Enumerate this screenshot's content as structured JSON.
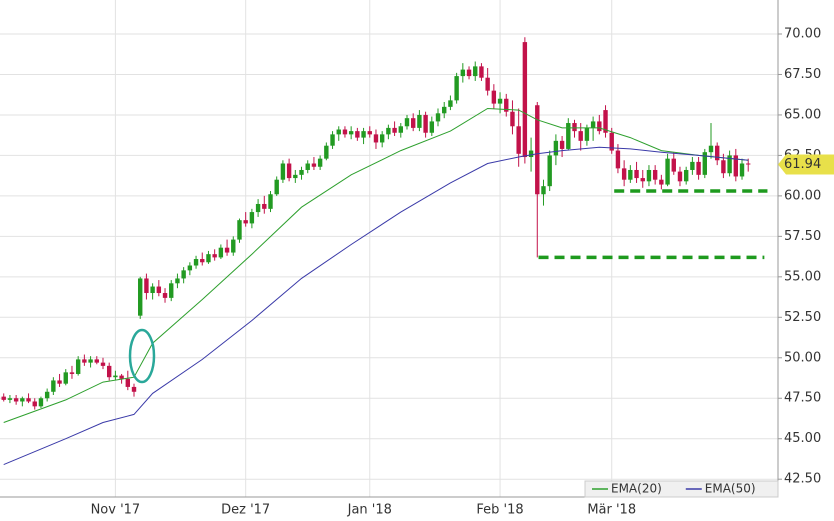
{
  "chart_data": {
    "type": "candlestick",
    "xlim": [
      -0.6,
      124.8
    ],
    "ylim": [
      41.4,
      72.1
    ],
    "xticks": [
      {
        "value": 18,
        "label": "Nov '17"
      },
      {
        "value": 39,
        "label": "Dez '17"
      },
      {
        "value": 59,
        "label": "Jan '18"
      },
      {
        "value": 80,
        "label": "Feb '18"
      },
      {
        "value": 98,
        "label": "Mär '18"
      }
    ],
    "yticks": [
      {
        "value": 42.5,
        "label": "42.50"
      },
      {
        "value": 45,
        "label": "45.00"
      },
      {
        "value": 47.5,
        "label": "47.50"
      },
      {
        "value": 50,
        "label": "50.00"
      },
      {
        "value": 52.5,
        "label": "52.50"
      },
      {
        "value": 55,
        "label": "55.00"
      },
      {
        "value": 57.5,
        "label": "57.50"
      },
      {
        "value": 60,
        "label": "60.00"
      },
      {
        "value": 62.5,
        "label": "62.50"
      },
      {
        "value": 65,
        "label": "65.00"
      },
      {
        "value": 67.5,
        "label": "67.50"
      },
      {
        "value": 70,
        "label": "70.00"
      }
    ],
    "grid": true,
    "up_color": "#229a22",
    "down_color": "#c2124a",
    "last_price": 61.94,
    "ohlc": [
      [
        47.6,
        47.8,
        47.3,
        47.4
      ],
      [
        47.4,
        47.7,
        47.2,
        47.5
      ],
      [
        47.5,
        47.7,
        47.1,
        47.3
      ],
      [
        47.3,
        47.6,
        47.0,
        47.5
      ],
      [
        47.5,
        47.8,
        47.2,
        47.3
      ],
      [
        47.3,
        47.5,
        46.8,
        47.0
      ],
      [
        47.0,
        47.6,
        46.9,
        47.5
      ],
      [
        47.5,
        48.1,
        47.3,
        47.9
      ],
      [
        47.9,
        48.8,
        47.7,
        48.6
      ],
      [
        48.6,
        49.0,
        48.2,
        48.4
      ],
      [
        48.4,
        49.3,
        48.3,
        49.1
      ],
      [
        49.1,
        49.5,
        48.7,
        49.0
      ],
      [
        49.0,
        50.1,
        48.9,
        49.9
      ],
      [
        49.9,
        50.2,
        49.5,
        49.7
      ],
      [
        49.7,
        50.1,
        49.4,
        49.9
      ],
      [
        49.9,
        50.1,
        49.6,
        49.7
      ],
      [
        49.7,
        50.0,
        49.3,
        49.5
      ],
      [
        49.5,
        49.7,
        48.6,
        48.8
      ],
      [
        48.8,
        49.2,
        48.6,
        48.9
      ],
      [
        48.9,
        49.0,
        48.4,
        48.7
      ],
      [
        48.7,
        49.2,
        48.0,
        48.2
      ],
      [
        48.2,
        48.4,
        47.6,
        47.9
      ],
      [
        52.6,
        55.0,
        52.4,
        54.9
      ],
      [
        54.9,
        55.2,
        53.6,
        54.0
      ],
      [
        54.0,
        54.6,
        53.6,
        54.4
      ],
      [
        54.4,
        54.8,
        53.8,
        54.0
      ],
      [
        54.0,
        54.3,
        53.4,
        53.7
      ],
      [
        53.7,
        54.8,
        53.5,
        54.6
      ],
      [
        54.6,
        55.2,
        54.3,
        54.9
      ],
      [
        54.9,
        55.6,
        54.6,
        55.4
      ],
      [
        55.4,
        55.9,
        55.1,
        55.7
      ],
      [
        55.7,
        56.3,
        55.5,
        56.1
      ],
      [
        56.1,
        56.5,
        55.7,
        55.9
      ],
      [
        55.9,
        56.6,
        55.8,
        56.4
      ],
      [
        56.4,
        56.7,
        56.0,
        56.2
      ],
      [
        56.2,
        57.0,
        56.1,
        56.8
      ],
      [
        56.8,
        57.3,
        56.3,
        56.5
      ],
      [
        56.5,
        57.5,
        56.3,
        57.3
      ],
      [
        57.3,
        58.6,
        57.1,
        58.5
      ],
      [
        58.5,
        59.0,
        58.1,
        58.3
      ],
      [
        58.3,
        59.2,
        58.0,
        59.0
      ],
      [
        59.0,
        59.8,
        58.7,
        59.5
      ],
      [
        59.5,
        60.0,
        58.9,
        59.2
      ],
      [
        59.2,
        60.3,
        59.0,
        60.1
      ],
      [
        60.1,
        61.2,
        60.0,
        61.0
      ],
      [
        61.0,
        62.2,
        60.8,
        62.0
      ],
      [
        62.0,
        62.3,
        60.9,
        61.1
      ],
      [
        61.1,
        61.6,
        60.8,
        61.3
      ],
      [
        61.3,
        61.8,
        61.0,
        61.6
      ],
      [
        61.6,
        62.2,
        61.4,
        62.0
      ],
      [
        62.0,
        62.4,
        61.6,
        61.8
      ],
      [
        61.8,
        62.5,
        61.6,
        62.3
      ],
      [
        62.3,
        63.3,
        62.2,
        63.1
      ],
      [
        63.1,
        64.0,
        62.9,
        63.8
      ],
      [
        63.8,
        64.3,
        63.4,
        64.1
      ],
      [
        64.1,
        64.3,
        63.6,
        63.8
      ],
      [
        63.8,
        64.3,
        63.5,
        64.0
      ],
      [
        64.0,
        64.2,
        63.4,
        63.6
      ],
      [
        63.6,
        64.2,
        63.2,
        64.0
      ],
      [
        64.0,
        64.3,
        63.6,
        63.8
      ],
      [
        63.8,
        64.1,
        62.9,
        63.3
      ],
      [
        63.3,
        64.0,
        63.0,
        63.8
      ],
      [
        63.8,
        64.4,
        63.5,
        64.2
      ],
      [
        64.2,
        64.6,
        63.7,
        63.9
      ],
      [
        63.9,
        64.5,
        63.6,
        64.3
      ],
      [
        64.3,
        65.0,
        64.1,
        64.8
      ],
      [
        64.8,
        65.1,
        64.0,
        64.2
      ],
      [
        64.2,
        65.3,
        64.0,
        65.0
      ],
      [
        65.0,
        65.2,
        63.6,
        63.9
      ],
      [
        63.9,
        64.9,
        63.7,
        64.6
      ],
      [
        64.6,
        65.4,
        64.3,
        65.1
      ],
      [
        65.1,
        65.8,
        64.8,
        65.5
      ],
      [
        65.5,
        66.2,
        65.3,
        65.9
      ],
      [
        65.9,
        67.6,
        65.7,
        67.4
      ],
      [
        67.4,
        68.2,
        67.0,
        67.8
      ],
      [
        67.8,
        68.0,
        67.2,
        67.4
      ],
      [
        67.4,
        68.3,
        67.1,
        68.0
      ],
      [
        68.0,
        68.2,
        67.1,
        67.3
      ],
      [
        67.3,
        67.9,
        66.2,
        66.5
      ],
      [
        66.5,
        66.9,
        65.4,
        65.7
      ],
      [
        65.7,
        66.4,
        65.1,
        66.0
      ],
      [
        66.0,
        66.3,
        64.9,
        65.2
      ],
      [
        65.2,
        65.9,
        63.8,
        64.3
      ],
      [
        64.3,
        65.4,
        61.8,
        62.6
      ],
      [
        69.5,
        69.8,
        62.0,
        62.4
      ],
      [
        62.4,
        63.6,
        61.5,
        62.8
      ],
      [
        65.6,
        65.8,
        56.2,
        60.1
      ],
      [
        60.1,
        61.0,
        59.4,
        60.6
      ],
      [
        60.6,
        62.8,
        60.3,
        62.5
      ],
      [
        62.5,
        63.8,
        61.9,
        63.4
      ],
      [
        63.4,
        63.7,
        62.4,
        62.9
      ],
      [
        62.9,
        64.8,
        62.8,
        64.5
      ],
      [
        64.5,
        64.7,
        63.6,
        64.0
      ],
      [
        64.0,
        64.5,
        62.8,
        63.4
      ],
      [
        63.4,
        64.4,
        63.1,
        64.2
      ],
      [
        64.2,
        64.9,
        63.4,
        64.6
      ],
      [
        64.6,
        65.0,
        63.8,
        64.0
      ],
      [
        65.3,
        65.6,
        63.6,
        63.9
      ],
      [
        63.9,
        64.2,
        62.6,
        62.8
      ],
      [
        62.8,
        63.2,
        61.4,
        61.7
      ],
      [
        61.7,
        62.2,
        60.6,
        61.0
      ],
      [
        61.0,
        61.9,
        60.8,
        61.6
      ],
      [
        61.6,
        62.1,
        60.8,
        61.1
      ],
      [
        61.1,
        61.6,
        60.5,
        60.9
      ],
      [
        60.9,
        61.9,
        60.6,
        61.6
      ],
      [
        61.6,
        61.9,
        60.7,
        61.0
      ],
      [
        61.0,
        61.3,
        60.4,
        60.7
      ],
      [
        60.7,
        62.6,
        60.6,
        62.3
      ],
      [
        62.3,
        62.7,
        61.3,
        61.5
      ],
      [
        61.5,
        61.8,
        60.6,
        60.9
      ],
      [
        60.9,
        61.8,
        60.7,
        61.6
      ],
      [
        61.6,
        62.4,
        61.3,
        62.1
      ],
      [
        62.1,
        62.4,
        61.0,
        61.3
      ],
      [
        61.3,
        62.9,
        61.1,
        62.7
      ],
      [
        62.7,
        64.5,
        62.3,
        63.1
      ],
      [
        63.1,
        63.3,
        61.9,
        62.2
      ],
      [
        62.2,
        62.6,
        61.1,
        61.4
      ],
      [
        61.4,
        62.8,
        61.2,
        62.5
      ],
      [
        62.5,
        62.9,
        60.9,
        61.2
      ],
      [
        61.2,
        62.3,
        61.0,
        62.0
      ],
      [
        62.0,
        62.3,
        61.5,
        61.94
      ]
    ],
    "series": [
      {
        "name": "EMA(20)",
        "color": "#2ea02e",
        "x": [
          0,
          10,
          16,
          21,
          24,
          32,
          40,
          48,
          56,
          64,
          72,
          78,
          83,
          86,
          90,
          96,
          101,
          106,
          112,
          120
        ],
        "values": [
          46.0,
          47.4,
          48.5,
          48.8,
          50.9,
          53.6,
          56.4,
          59.3,
          61.3,
          62.8,
          64.0,
          65.4,
          65.3,
          64.7,
          64.2,
          64.2,
          63.6,
          62.8,
          62.5,
          62.2
        ]
      },
      {
        "name": "EMA(50)",
        "color": "#3a3aa8",
        "x": [
          0,
          10,
          16,
          21,
          24,
          32,
          40,
          48,
          56,
          64,
          72,
          78,
          83,
          86,
          90,
          96,
          101,
          106,
          112,
          120
        ],
        "values": [
          43.4,
          45.0,
          46.0,
          46.5,
          47.8,
          49.9,
          52.3,
          54.9,
          57.0,
          59.0,
          60.8,
          62.0,
          62.4,
          62.6,
          62.8,
          63.0,
          62.9,
          62.7,
          62.5,
          62.2
        ]
      }
    ],
    "support_lines": [
      {
        "value": 60.3,
        "x": [
          98.4,
          123.1
        ],
        "color": "#1e9a1e"
      },
      {
        "value": 56.2,
        "x": [
          86.2,
          122.6
        ],
        "color": "#1e9a1e"
      }
    ]
  }
}
